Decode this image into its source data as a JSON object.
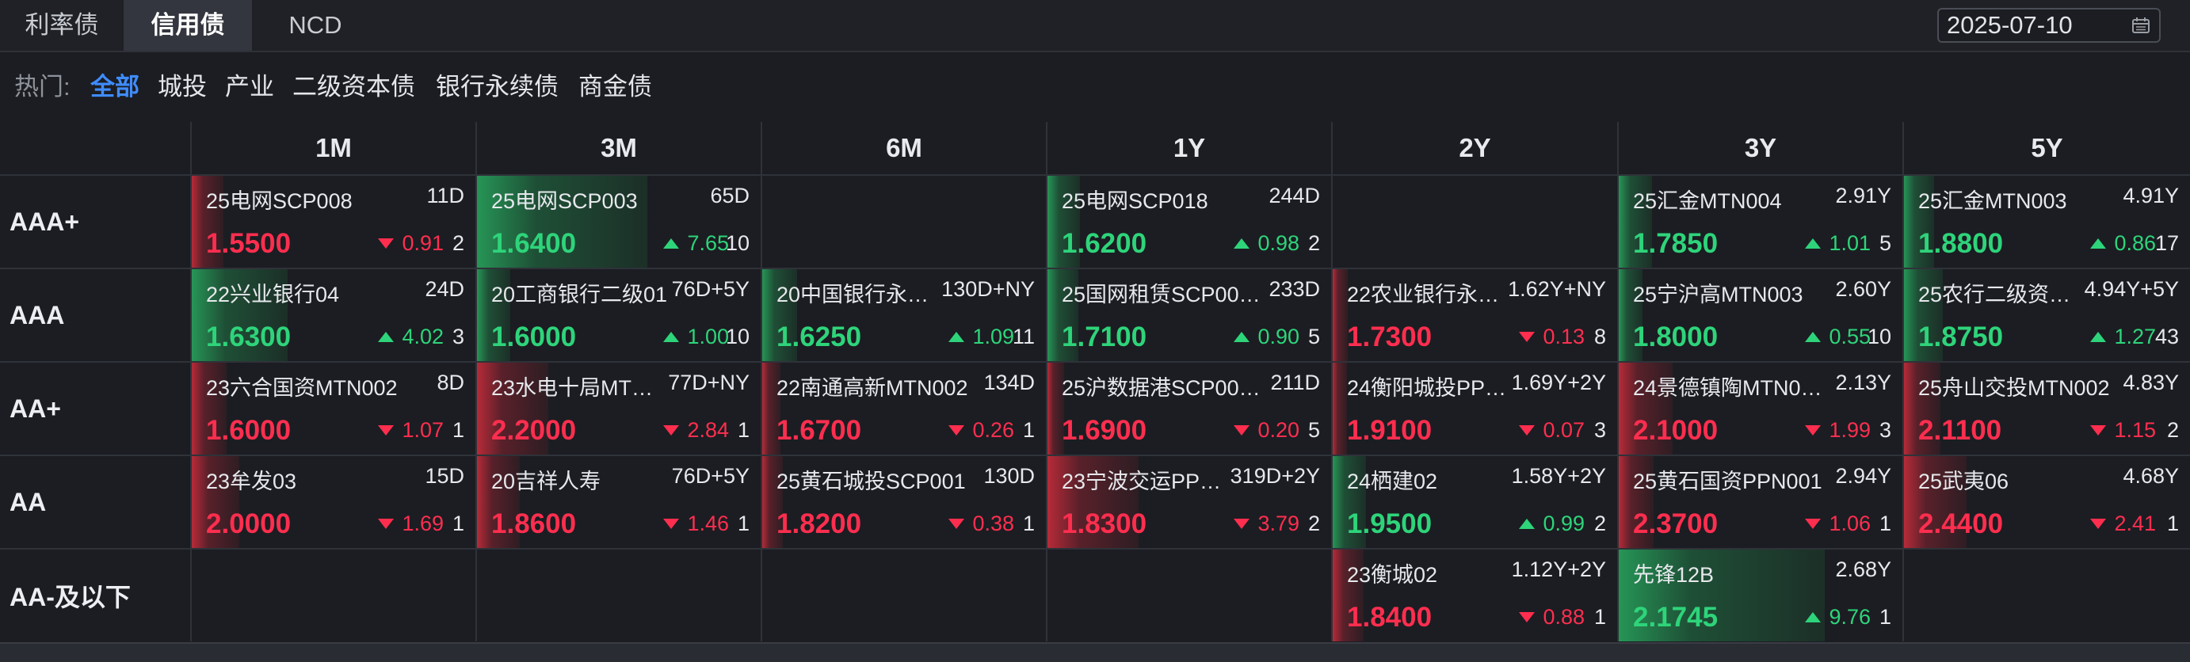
{
  "tabs": [
    "利率债",
    "信用债",
    "NCD"
  ],
  "active_tab": 1,
  "date": "2025-07-10",
  "filters": {
    "label": "热门:",
    "items": [
      "全部",
      "城投",
      "产业",
      "二级资本债",
      "银行永续债",
      "商金债"
    ],
    "active": 0
  },
  "columns": [
    "1M",
    "3M",
    "6M",
    "1Y",
    "2Y",
    "3Y",
    "5Y"
  ],
  "rows": [
    "AAA+",
    "AAA",
    "AA+",
    "AA",
    "AA-及以下"
  ],
  "colors": {
    "up": "#2ed47a",
    "down": "#ff2e4f",
    "active_filter": "#3f8cff"
  },
  "cells": [
    [
      {
        "name": "25电网SCP008",
        "term": "11D",
        "rate": "1.5500",
        "dir": "down",
        "change": "0.91",
        "count": "2"
      },
      {
        "name": "25电网SCP003",
        "term": "65D",
        "rate": "1.6400",
        "dir": "up",
        "change": "7.65",
        "count": "10"
      },
      null,
      {
        "name": "25电网SCP018",
        "term": "244D",
        "rate": "1.6200",
        "dir": "up",
        "change": "0.98",
        "count": "2"
      },
      null,
      {
        "name": "25汇金MTN004",
        "term": "2.91Y",
        "rate": "1.7850",
        "dir": "up",
        "change": "1.01",
        "count": "5"
      },
      {
        "name": "25汇金MTN003",
        "term": "4.91Y",
        "rate": "1.8800",
        "dir": "up",
        "change": "0.86",
        "count": "17"
      }
    ],
    [
      {
        "name": "22兴业银行04",
        "term": "24D",
        "rate": "1.6300",
        "dir": "up",
        "change": "4.02",
        "count": "3"
      },
      {
        "name": "20工商银行二级01",
        "term": "76D+5Y",
        "rate": "1.6000",
        "dir": "up",
        "change": "1.00",
        "count": "10"
      },
      {
        "name": "20中国银行永…",
        "term": "130D+NY",
        "rate": "1.6250",
        "dir": "up",
        "change": "1.09",
        "count": "11"
      },
      {
        "name": "25国网租赁SCP00…",
        "term": "233D",
        "rate": "1.7100",
        "dir": "up",
        "change": "0.90",
        "count": "5"
      },
      {
        "name": "22农业银行永…",
        "term": "1.62Y+NY",
        "rate": "1.7300",
        "dir": "down",
        "change": "0.13",
        "count": "8"
      },
      {
        "name": "25宁沪高MTN003",
        "term": "2.60Y",
        "rate": "1.8000",
        "dir": "up",
        "change": "0.55",
        "count": "10"
      },
      {
        "name": "25农行二级资…",
        "term": "4.94Y+5Y",
        "rate": "1.8750",
        "dir": "up",
        "change": "1.27",
        "count": "43"
      }
    ],
    [
      {
        "name": "23六合国资MTN002",
        "term": "8D",
        "rate": "1.6000",
        "dir": "down",
        "change": "1.07",
        "count": "1"
      },
      {
        "name": "23水电十局MT…",
        "term": "77D+NY",
        "rate": "2.2000",
        "dir": "down",
        "change": "2.84",
        "count": "1"
      },
      {
        "name": "22南通高新MTN002",
        "term": "134D",
        "rate": "1.6700",
        "dir": "down",
        "change": "0.26",
        "count": "1"
      },
      {
        "name": "25沪数据港SCP00…",
        "term": "211D",
        "rate": "1.6900",
        "dir": "down",
        "change": "0.20",
        "count": "5"
      },
      {
        "name": "24衡阳城投PP…",
        "term": "1.69Y+2Y",
        "rate": "1.9100",
        "dir": "down",
        "change": "0.07",
        "count": "3"
      },
      {
        "name": "24景德镇陶MTN0…",
        "term": "2.13Y",
        "rate": "2.1000",
        "dir": "down",
        "change": "1.99",
        "count": "3"
      },
      {
        "name": "25舟山交投MTN002",
        "term": "4.83Y",
        "rate": "2.1100",
        "dir": "down",
        "change": "1.15",
        "count": "2"
      }
    ],
    [
      {
        "name": "23牟发03",
        "term": "15D",
        "rate": "2.0000",
        "dir": "down",
        "change": "1.69",
        "count": "1"
      },
      {
        "name": "20吉祥人寿",
        "term": "76D+5Y",
        "rate": "1.8600",
        "dir": "down",
        "change": "1.46",
        "count": "1"
      },
      {
        "name": "25黄石城投SCP001",
        "term": "130D",
        "rate": "1.8200",
        "dir": "down",
        "change": "0.38",
        "count": "1"
      },
      {
        "name": "23宁波交运PP…",
        "term": "319D+2Y",
        "rate": "1.8300",
        "dir": "down",
        "change": "3.79",
        "count": "2"
      },
      {
        "name": "24栖建02",
        "term": "1.58Y+2Y",
        "rate": "1.9500",
        "dir": "up",
        "change": "0.99",
        "count": "2"
      },
      {
        "name": "25黄石国资PPN001",
        "term": "2.94Y",
        "rate": "2.3700",
        "dir": "down",
        "change": "1.06",
        "count": "1"
      },
      {
        "name": "25武夷06",
        "term": "4.68Y",
        "rate": "2.4400",
        "dir": "down",
        "change": "2.41",
        "count": "1"
      }
    ],
    [
      null,
      null,
      null,
      null,
      {
        "name": "23衡城02",
        "term": "1.12Y+2Y",
        "rate": "1.8400",
        "dir": "down",
        "change": "0.88",
        "count": "1"
      },
      {
        "name": "先锋12B",
        "term": "2.68Y",
        "rate": "2.1745",
        "dir": "up",
        "change": "9.76",
        "count": "1"
      },
      null
    ]
  ]
}
